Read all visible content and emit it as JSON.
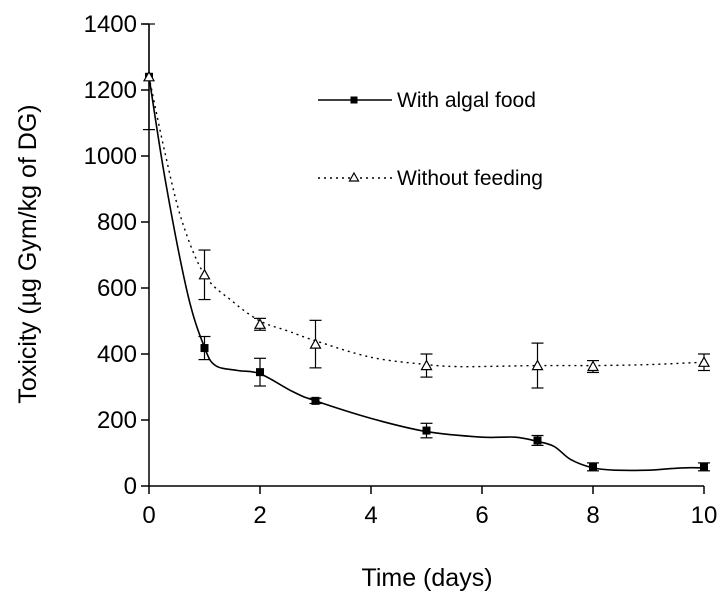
{
  "chart_data": {
    "type": "line",
    "xlabel": "Time (days)",
    "ylabel": "Toxicity (µg Gym/kg of DG)",
    "xlim": [
      0,
      10
    ],
    "ylim": [
      0,
      1400
    ],
    "xticks": [
      0,
      2,
      4,
      6,
      8,
      10
    ],
    "yticks": [
      0,
      200,
      400,
      600,
      800,
      1000,
      1200,
      1400
    ],
    "legend_position": "top-right",
    "grid": false,
    "series": [
      {
        "name": "With algal food",
        "marker": "filled-square",
        "line_style": "solid",
        "color": "#000000",
        "x": [
          0,
          1,
          2,
          3,
          5,
          7,
          8,
          10
        ],
        "y": [
          1240,
          418,
          345,
          258,
          168,
          138,
          58,
          58
        ],
        "error": [
          160,
          35,
          42,
          8,
          22,
          15,
          12,
          12
        ],
        "fit_x": [
          0,
          0.3,
          0.7,
          1,
          1.2,
          1.6,
          2,
          2.6,
          3,
          4,
          5,
          6,
          6.6,
          7,
          7.3,
          7.6,
          8,
          8.4,
          9,
          9.6,
          10
        ],
        "fit_y": [
          1240,
          920,
          580,
          420,
          365,
          350,
          340,
          285,
          258,
          205,
          165,
          148,
          148,
          135,
          120,
          80,
          55,
          48,
          48,
          55,
          55
        ]
      },
      {
        "name": "Without feeding",
        "marker": "open-triangle",
        "line_style": "dotted",
        "color": "#000000",
        "x": [
          0,
          1,
          2,
          3,
          5,
          7,
          8,
          10
        ],
        "y": [
          1240,
          640,
          490,
          430,
          365,
          365,
          362,
          375
        ],
        "error": [
          0,
          75,
          18,
          72,
          35,
          68,
          18,
          25
        ],
        "fit_x": [
          0,
          0.3,
          0.6,
          1,
          1.5,
          2,
          2.5,
          3,
          4,
          5,
          5.5,
          6,
          7,
          8,
          9,
          10
        ],
        "fit_y": [
          1240,
          1000,
          800,
          640,
          560,
          500,
          470,
          440,
          390,
          368,
          362,
          362,
          365,
          365,
          368,
          375
        ]
      }
    ]
  }
}
